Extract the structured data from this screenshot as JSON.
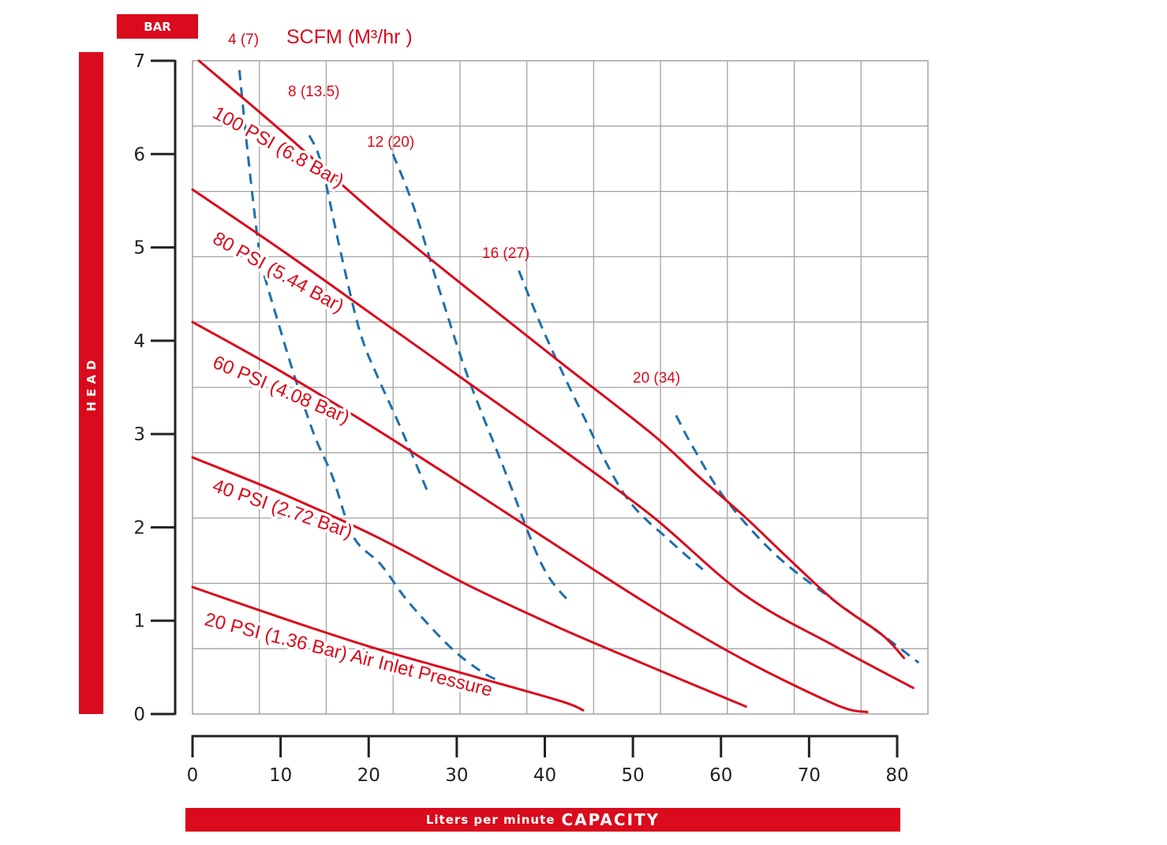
{
  "chart_data": {
    "type": "line",
    "title": "",
    "y_unit_label": "BAR",
    "ylabel": "HEAD",
    "xlabel_prefix": "Liters per minute",
    "xlabel_main": "CAPACITY",
    "air_label": "SCFM (M³/hr )",
    "xlim": [
      0,
      80
    ],
    "ylim": [
      0,
      7
    ],
    "x_axis_ticks": [
      0,
      10,
      20,
      30,
      40,
      50,
      60,
      70,
      80
    ],
    "y_axis_ticks": [
      0,
      1,
      2,
      3,
      4,
      5,
      6,
      7
    ],
    "grid": true,
    "pressure_series": [
      {
        "name": "100 PSI (6.8 Bar)",
        "x": [
          0.7,
          10,
          20,
          30,
          40,
          50,
          55,
          60,
          65,
          70,
          75,
          77.4
        ],
        "y": [
          7.0,
          6.22,
          5.35,
          4.55,
          3.77,
          3.0,
          2.55,
          2.12,
          1.65,
          1.2,
          0.85,
          0.6
        ]
      },
      {
        "name": "80 PSI (5.44 Bar)",
        "x": [
          0,
          10,
          20,
          30,
          40,
          50,
          60,
          70,
          78.4
        ],
        "y": [
          5.62,
          4.95,
          4.25,
          3.55,
          2.85,
          2.12,
          1.28,
          0.72,
          0.28
        ]
      },
      {
        "name": "60 PSI (4.08 Bar)",
        "x": [
          0,
          10,
          20,
          30,
          40,
          50,
          60,
          70,
          73.4
        ],
        "y": [
          4.2,
          3.65,
          3.05,
          2.42,
          1.78,
          1.15,
          0.58,
          0.1,
          0.02
        ]
      },
      {
        "name": "40 PSI (2.72 Bar)",
        "x": [
          0,
          10,
          20,
          30,
          40,
          50,
          60.2
        ],
        "y": [
          2.75,
          2.35,
          1.9,
          1.38,
          0.92,
          0.5,
          0.08
        ]
      },
      {
        "name": "20 PSI (1.36 Bar) Air Inlet Pressure",
        "x": [
          0,
          10,
          20,
          30,
          40,
          42.5
        ],
        "y": [
          1.36,
          1.02,
          0.7,
          0.42,
          0.14,
          0.04
        ]
      }
    ],
    "air_series": [
      {
        "name": "4 (7)",
        "x": [
          5.1,
          5.8,
          6.7,
          7.2
        ],
        "y": [
          6.9,
          6.2,
          5.4,
          5.0
        ]
      },
      {
        "name": "8 (13.5)",
        "x": [
          12.7,
          14.0,
          16.0,
          18.2,
          20.2,
          22.5,
          25.5
        ],
        "y": [
          6.2,
          5.9,
          5.0,
          4.1,
          3.6,
          3.1,
          2.4
        ]
      },
      {
        "name": "12 (20)",
        "x": [
          21.8,
          24.0,
          27.0,
          30.0,
          34.0,
          38.0,
          41.0
        ],
        "y": [
          6.0,
          5.45,
          4.5,
          3.6,
          2.6,
          1.6,
          1.2
        ]
      },
      {
        "name": "16 (27)",
        "x": [
          35.5,
          38.2,
          42.0,
          47.0,
          52.0,
          55.5
        ],
        "y": [
          4.75,
          4.1,
          3.3,
          2.35,
          1.85,
          1.55
        ]
      },
      {
        "name": "20 (34)",
        "x": [
          52.6,
          54.5,
          58.0,
          63.5,
          70.0,
          75.0,
          79.0
        ],
        "y": [
          3.2,
          2.85,
          2.3,
          1.7,
          1.2,
          0.85,
          0.55
        ]
      },
      {
        "name": "",
        "x": [
          7.8,
          9.0,
          11.0,
          13.2,
          15.2,
          17.5,
          20.5,
          23.5,
          28.0,
          31.5,
          33.5
        ],
        "y": [
          4.7,
          4.3,
          3.65,
          3.0,
          2.55,
          1.9,
          1.6,
          1.2,
          0.72,
          0.45,
          0.35
        ]
      }
    ]
  },
  "colors": {
    "red": "#d90b1c",
    "blue": "#1f6fab",
    "grid": "#a3a3a3",
    "axis": "#222222"
  }
}
